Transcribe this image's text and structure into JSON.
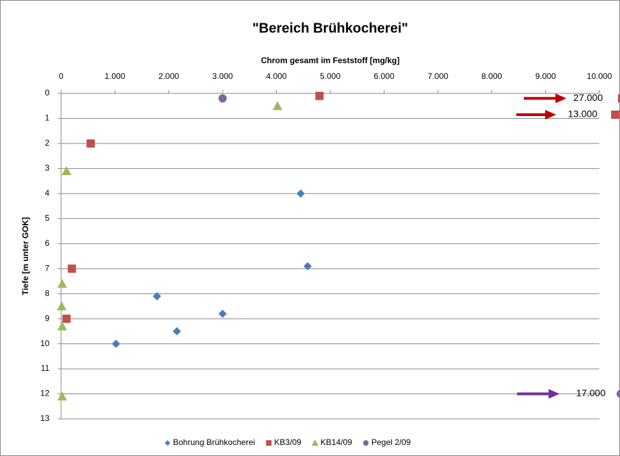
{
  "chart_data": {
    "type": "scatter",
    "title": "\"Bereich Brühkocherei\"",
    "x_label": "Chrom gesamt im Feststoff  [mg/kg]",
    "y_label": "Tiefe [m unter GOK]",
    "xlim": [
      0,
      10000
    ],
    "xticks": [
      0,
      {
        "value": 1000,
        "label": "1.000"
      },
      {
        "value": 2000,
        "label": "2.000"
      },
      {
        "value": 3000,
        "label": "3.000"
      },
      {
        "value": 4000,
        "label": "4.000"
      },
      {
        "value": 5000,
        "label": "5.000"
      },
      {
        "value": 6000,
        "label": "6.000"
      },
      {
        "value": 7000,
        "label": "7.000"
      },
      {
        "value": 8000,
        "label": "8.000"
      },
      {
        "value": 9000,
        "label": "9.000"
      },
      {
        "value": 10000,
        "label": "10.000"
      }
    ],
    "ylim": [
      0,
      13
    ],
    "y_inverted": true,
    "x_axis_position": "top",
    "yticks": [
      0,
      1,
      2,
      3,
      4,
      5,
      6,
      7,
      8,
      9,
      10,
      11,
      12,
      13
    ],
    "grid": true,
    "legend": "bottom",
    "series": [
      {
        "name": "Bohrung Brühkocherei",
        "color": "#4a7ebb",
        "marker": "diamond",
        "x": [
          4450,
          4580,
          1780,
          3000,
          2150,
          1020
        ],
        "values": [
          4,
          6.9,
          8.1,
          8.8,
          9.5,
          10
        ]
      },
      {
        "name": "KB3/09",
        "color": "#c0504d",
        "marker": "square",
        "x": [
          4800,
          550,
          200,
          100
        ],
        "values": [
          0.1,
          2,
          7,
          9
        ]
      },
      {
        "name": "KB14/09",
        "color": "#9bbb59",
        "marker": "triangle",
        "x": [
          4020,
          100,
          20,
          10,
          20,
          20
        ],
        "values": [
          0.5,
          3.1,
          7.6,
          8.5,
          9.3,
          12.1
        ]
      },
      {
        "name": "Pegel 2/09",
        "color": "#8064a2",
        "marker": "circle",
        "x": [
          3000
        ],
        "values": [
          0.2
        ]
      }
    ],
    "annotations": [
      {
        "text": "27.000",
        "y": 0.2,
        "color": "#c00000",
        "marker_color": "#c0504d",
        "marker": "square"
      },
      {
        "text": "13.000",
        "y": 0.85,
        "color": "#c00000",
        "marker_color": "#c0504d",
        "marker": "square"
      },
      {
        "text": "17.000",
        "y": 12,
        "color": "#7030a0",
        "marker_color": "#8064a2",
        "marker": "circle"
      }
    ]
  }
}
